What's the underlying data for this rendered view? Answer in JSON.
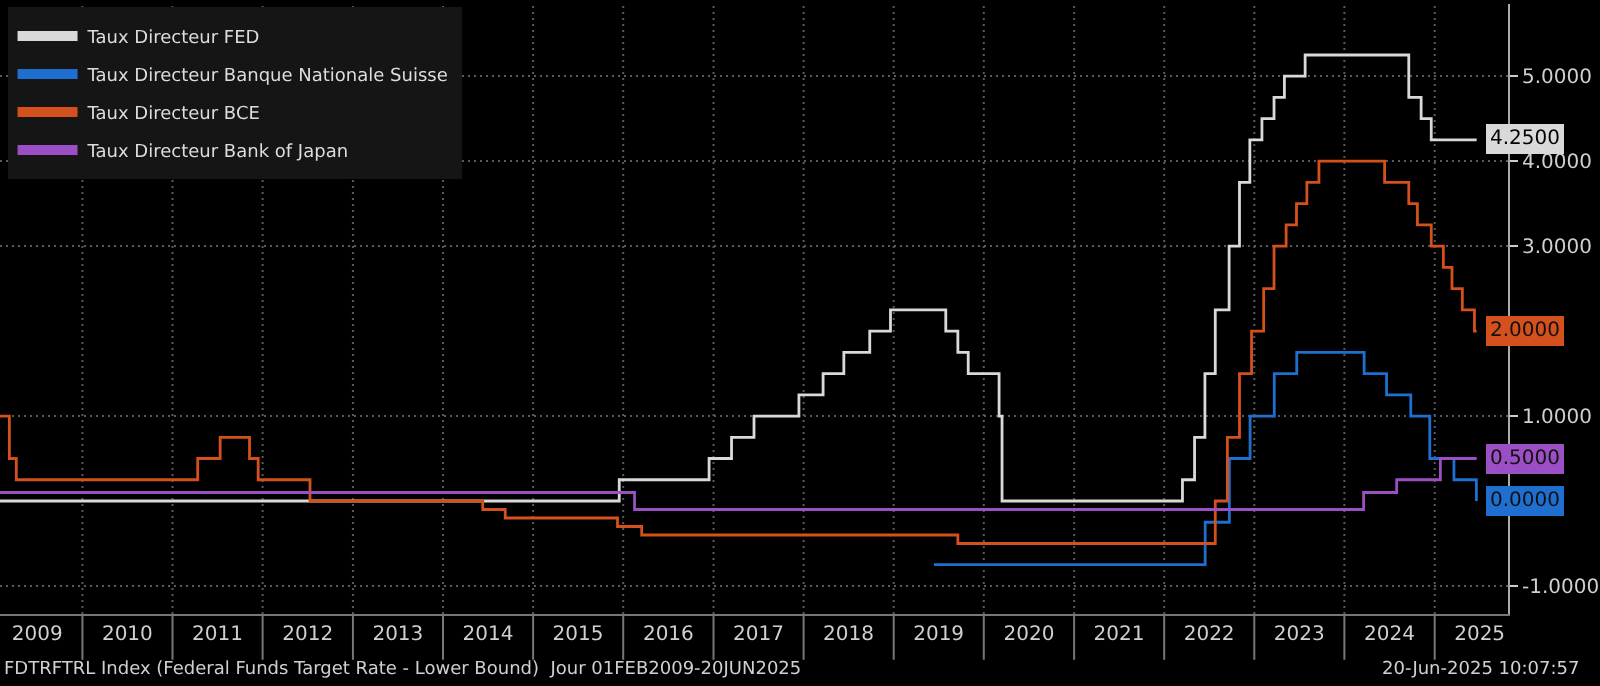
{
  "chart_data": {
    "type": "step",
    "series": [
      {
        "name": "Taux Directeur FED",
        "color": "#d9d9d9",
        "x": [
          "2009-02-01",
          "2015-12-16",
          "2016-12-14",
          "2017-03-15",
          "2017-06-14",
          "2017-12-13",
          "2018-03-21",
          "2018-06-13",
          "2018-09-26",
          "2018-12-19",
          "2019-07-31",
          "2019-09-18",
          "2019-10-30",
          "2020-03-03",
          "2020-03-15",
          "2022-03-16",
          "2022-05-04",
          "2022-06-15",
          "2022-07-27",
          "2022-09-21",
          "2022-11-02",
          "2022-12-14",
          "2023-02-01",
          "2023-03-22",
          "2023-05-03",
          "2023-07-26",
          "2024-09-18",
          "2024-11-07",
          "2024-12-18",
          "2025-06-20"
        ],
        "values": [
          0,
          0.25,
          0.5,
          0.75,
          1.0,
          1.25,
          1.5,
          1.75,
          2.0,
          2.25,
          2.0,
          1.75,
          1.5,
          1.0,
          0,
          0.25,
          0.75,
          1.5,
          2.25,
          3.0,
          3.75,
          4.25,
          4.5,
          4.75,
          5.0,
          5.25,
          4.75,
          4.5,
          4.25,
          4.25
        ]
      },
      {
        "name": "Taux Directeur Banque Nationale Suisse",
        "color": "#1f6fd1",
        "x": [
          "2019-06-13",
          "2022-06-16",
          "2022-09-22",
          "2022-12-15",
          "2023-03-23",
          "2023-06-22",
          "2024-03-21",
          "2024-06-20",
          "2024-09-26",
          "2024-12-12",
          "2025-03-20",
          "2025-06-19"
        ],
        "values": [
          -0.75,
          -0.25,
          0.5,
          1.0,
          1.5,
          1.75,
          1.5,
          1.25,
          1.0,
          0.5,
          0.25,
          0.0
        ]
      },
      {
        "name": "Taux Directeur BCE",
        "color": "#d4501c",
        "x": [
          "2009-02-01",
          "2009-03-11",
          "2009-04-08",
          "2011-04-13",
          "2011-07-13",
          "2011-11-09",
          "2011-12-14",
          "2012-07-11",
          "2014-06-11",
          "2014-09-10",
          "2015-12-09",
          "2016-03-16",
          "2019-09-18",
          "2022-07-27",
          "2022-09-14",
          "2022-11-02",
          "2022-12-21",
          "2023-02-08",
          "2023-03-22",
          "2023-05-10",
          "2023-06-21",
          "2023-08-02",
          "2023-09-20",
          "2024-06-12",
          "2024-09-18",
          "2024-10-23",
          "2024-12-18",
          "2025-02-05",
          "2025-03-12",
          "2025-04-23",
          "2025-06-11",
          "2025-06-20"
        ],
        "values": [
          1.0,
          0.5,
          0.25,
          0.5,
          0.75,
          0.5,
          0.25,
          0,
          -0.1,
          -0.2,
          -0.3,
          -0.4,
          -0.5,
          0,
          0.75,
          1.5,
          2.0,
          2.5,
          3.0,
          3.25,
          3.5,
          3.75,
          4.0,
          3.75,
          3.5,
          3.25,
          3.0,
          2.75,
          2.5,
          2.25,
          2.0,
          2.0
        ]
      },
      {
        "name": "Taux Directeur Bank of Japan",
        "color": "#9b4fc4",
        "x": [
          "2009-02-01",
          "2016-02-16",
          "2024-03-19",
          "2024-07-31",
          "2025-01-24",
          "2025-06-20"
        ],
        "values": [
          0.1,
          -0.1,
          0.1,
          0.25,
          0.5,
          0.5
        ]
      }
    ],
    "ylim": [
      -1.33,
      5.85
    ],
    "yticks": [
      {
        "value": -1,
        "label": "-1.0000"
      },
      {
        "value": 1,
        "label": "1.0000"
      },
      {
        "value": 3,
        "label": "3.0000"
      },
      {
        "value": 4,
        "label": "4.0000"
      },
      {
        "value": 5,
        "label": "5.0000"
      }
    ],
    "xlim": [
      "2009-02-01",
      "2025-10-25"
    ],
    "xticks": [
      {
        "value": "2009-07-02",
        "label": "2009"
      },
      {
        "value": "2010-01-01",
        "label": null
      },
      {
        "value": "2010-07-02",
        "label": "2010"
      },
      {
        "value": "2011-01-01",
        "label": null
      },
      {
        "value": "2011-07-02",
        "label": "2011"
      },
      {
        "value": "2012-01-01",
        "label": null
      },
      {
        "value": "2012-07-02",
        "label": "2012"
      },
      {
        "value": "2013-01-01",
        "label": null
      },
      {
        "value": "2013-07-02",
        "label": "2013"
      },
      {
        "value": "2014-01-01",
        "label": null
      },
      {
        "value": "2014-07-02",
        "label": "2014"
      },
      {
        "value": "2015-01-01",
        "label": null
      },
      {
        "value": "2015-07-02",
        "label": "2015"
      },
      {
        "value": "2016-01-01",
        "label": null
      },
      {
        "value": "2016-07-02",
        "label": "2016"
      },
      {
        "value": "2017-01-01",
        "label": null
      },
      {
        "value": "2017-07-02",
        "label": "2017"
      },
      {
        "value": "2018-01-01",
        "label": null
      },
      {
        "value": "2018-07-02",
        "label": "2018"
      },
      {
        "value": "2019-01-01",
        "label": null
      },
      {
        "value": "2019-07-02",
        "label": "2019"
      },
      {
        "value": "2020-01-01",
        "label": null
      },
      {
        "value": "2020-07-02",
        "label": "2020"
      },
      {
        "value": "2021-01-01",
        "label": null
      },
      {
        "value": "2021-07-02",
        "label": "2021"
      },
      {
        "value": "2022-01-01",
        "label": null
      },
      {
        "value": "2022-07-02",
        "label": "2022"
      },
      {
        "value": "2023-01-01",
        "label": null
      },
      {
        "value": "2023-07-02",
        "label": "2023"
      },
      {
        "value": "2024-01-01",
        "label": null
      },
      {
        "value": "2024-07-02",
        "label": "2024"
      },
      {
        "value": "2025-01-01",
        "label": null
      },
      {
        "value": "2025-07-02",
        "label": "2025"
      }
    ],
    "grid": true,
    "legend": "top left",
    "annotations": [
      {
        "text": "4.2500",
        "x": "2025-06-20",
        "y": 4.25
      },
      {
        "text": "0.0000",
        "x": "2025-06-20",
        "y": 0.0
      },
      {
        "text": "2.0000",
        "x": "2025-06-20",
        "y": 2.0
      },
      {
        "text": "0.5000",
        "x": "2025-06-20",
        "y": 0.5
      },
      "FDTRFTRL Index (Federal Funds Target Rate - Lower Bound)  Jour 01FEB2009-20JUN2025",
      "20-Jun-2025 10:07:57"
    ]
  }
}
